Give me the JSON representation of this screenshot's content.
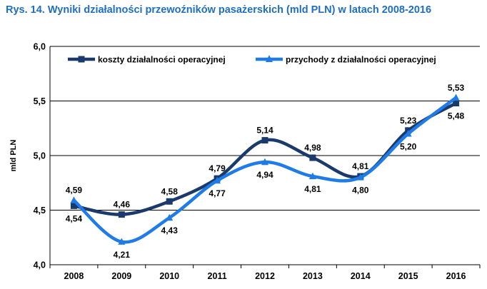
{
  "chart_data": {
    "type": "line",
    "title": "Rys. 14. Wyniki działalności przewoźników pasażerskich (mld PLN) w latach 2008-2016",
    "ylabel": "mld PLN",
    "xlabel": "",
    "ylim": [
      4.0,
      6.0
    ],
    "yticks": [
      "4,0",
      "4,5",
      "5,0",
      "5,5",
      "6,0"
    ],
    "ytick_values": [
      4.0,
      4.5,
      5.0,
      5.5,
      6.0
    ],
    "categories": [
      "2008",
      "2009",
      "2010",
      "2011",
      "2012",
      "2013",
      "2014",
      "2015",
      "2016"
    ],
    "grid": "horizontal",
    "legend_position": "top",
    "series": [
      {
        "name": "koszty działalności operacyjnej",
        "color": "#1a3a6b",
        "marker": "square",
        "values": [
          4.54,
          4.46,
          4.58,
          4.79,
          5.14,
          4.98,
          4.81,
          5.23,
          5.48
        ],
        "labels": [
          "4,54",
          "4,46",
          "4,58",
          "4,79",
          "5,14",
          "4,98",
          "4,81",
          "5,23",
          "5,48"
        ]
      },
      {
        "name": "przychody z działalności operacyjnej",
        "color": "#1e7be8",
        "marker": "triangle",
        "values": [
          4.59,
          4.21,
          4.43,
          4.77,
          4.94,
          4.81,
          4.8,
          5.2,
          5.53
        ],
        "labels": [
          "4,59",
          "4,21",
          "4,43",
          "4,77",
          "4,94",
          "4,81",
          "4,80",
          "5,20",
          "5,53"
        ]
      }
    ]
  }
}
